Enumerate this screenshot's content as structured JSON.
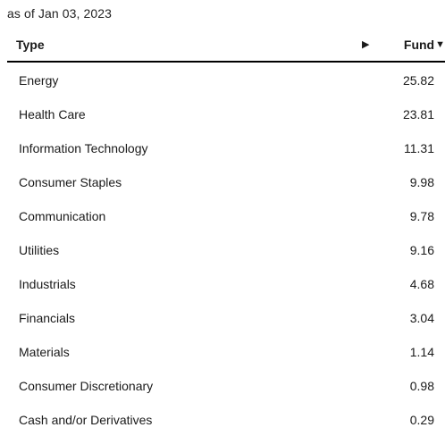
{
  "as_of": "as of Jan 03, 2023",
  "table": {
    "header": {
      "type_label": "Type",
      "expand_glyph": "▶",
      "fund_label": "Fund",
      "sort_glyph": "▼"
    },
    "rows": [
      {
        "type": "Energy",
        "fund": "25.82"
      },
      {
        "type": "Health Care",
        "fund": "23.81"
      },
      {
        "type": "Information Technology",
        "fund": "11.31"
      },
      {
        "type": "Consumer Staples",
        "fund": "9.98"
      },
      {
        "type": "Communication",
        "fund": "9.78"
      },
      {
        "type": "Utilities",
        "fund": "9.16"
      },
      {
        "type": "Industrials",
        "fund": "4.68"
      },
      {
        "type": "Financials",
        "fund": "3.04"
      },
      {
        "type": "Materials",
        "fund": "1.14"
      },
      {
        "type": "Consumer Discretionary",
        "fund": "0.98"
      },
      {
        "type": "Cash and/or Derivatives",
        "fund": "0.29"
      }
    ]
  }
}
